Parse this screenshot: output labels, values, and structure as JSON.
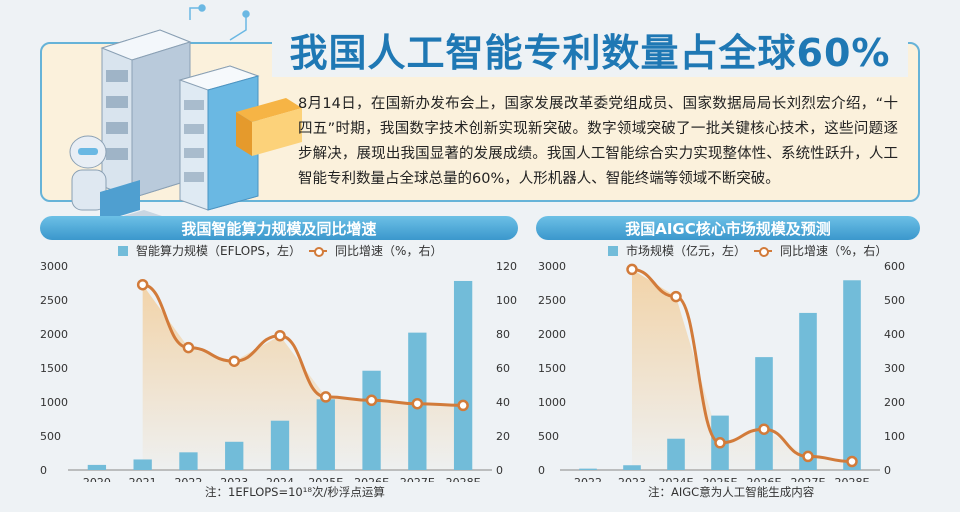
{
  "header": {
    "title": "我国人工智能专利数量占全球60%",
    "paragraph": "8月14日，在国新办发布会上，国家发展改革委党组成员、国家数据局局长刘烈宏介绍，“十四五”时期，我国数字技术创新实现新突破。数字领域突破了一批关键核心技术，这些问题逐步解决，展现出我国显著的发展成绩。我国人工智能综合实力实现整体性、系统性跃升，人工智能专利数量占全球总量的60%，人形机器人、智能终端等领域不断突破。"
  },
  "colors": {
    "bar": "#72bcd9",
    "line": "#d27b3a",
    "area": "#f3c98f",
    "title": "#1f78b4"
  },
  "left_chart": {
    "panel_title": "我国智能算力规模及同比增速",
    "legend_bar": "智能算力规模（EFLOPS，左）",
    "legend_line": "同比增速（%，右）",
    "note": "注：1EFLOPS=10¹⁸次/秒浮点运算"
  },
  "right_chart": {
    "panel_title": "我国AIGC核心市场规模及预测",
    "legend_bar": "市场规模（亿元，左）",
    "legend_line": "同比增速（%，右）",
    "note": "注：AIGC意为人工智能生成内容"
  },
  "chart_data": [
    {
      "type": "bar",
      "title": "我国智能算力规模及同比增速",
      "categories": [
        "2020",
        "2021",
        "2022",
        "2023",
        "2024",
        "2025E",
        "2026E",
        "2027E",
        "2028E"
      ],
      "series": [
        {
          "name": "智能算力规模（EFLOPS，左）",
          "axis": "left",
          "type": "bar",
          "values": [
            75,
            155,
            260,
            415,
            725,
            1040,
            1460,
            2020,
            2780
          ]
        },
        {
          "name": "同比增速（%，右）",
          "axis": "right",
          "type": "line",
          "values": [
            null,
            109,
            72,
            64,
            79,
            43,
            41,
            39,
            38
          ]
        }
      ],
      "ylim_left": [
        0,
        3000
      ],
      "yticks_left": [
        0,
        500,
        1000,
        1500,
        2000,
        2500,
        3000
      ],
      "ylim_right": [
        0,
        120
      ],
      "yticks_right": [
        0,
        20,
        40,
        60,
        80,
        100,
        120
      ]
    },
    {
      "type": "bar",
      "title": "我国AIGC核心市场规模及预测",
      "categories": [
        "2022",
        "2023",
        "2024E",
        "2025E",
        "2026E",
        "2027E",
        "2028E"
      ],
      "series": [
        {
          "name": "市场规模（亿元，左）",
          "axis": "left",
          "type": "bar",
          "values": [
            20,
            70,
            460,
            800,
            1660,
            2310,
            2790
          ]
        },
        {
          "name": "同比增速（%，右）",
          "axis": "right",
          "type": "line",
          "values": [
            null,
            590,
            510,
            80,
            120,
            40,
            25
          ]
        }
      ],
      "ylim_left": [
        0,
        3000
      ],
      "yticks_left": [
        0,
        500,
        1000,
        1500,
        2000,
        2500,
        3000
      ],
      "ylim_right": [
        0,
        600
      ],
      "yticks_right": [
        0,
        100,
        200,
        300,
        400,
        500,
        600
      ]
    }
  ]
}
